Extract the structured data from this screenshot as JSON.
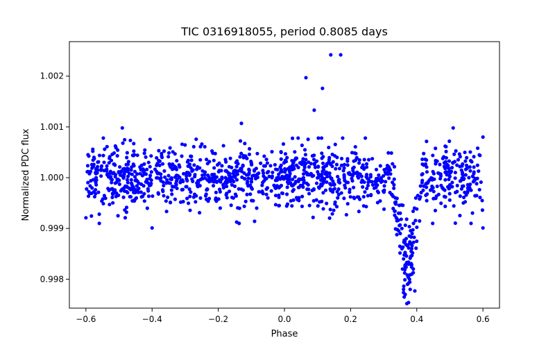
{
  "chart_data": {
    "type": "scatter",
    "title": "TIC 0316918055, period 0.8085 days",
    "xlabel": "Phase",
    "ylabel": "Normalized PDC flux",
    "xlim": [
      -0.65,
      0.65
    ],
    "ylim": [
      0.99743,
      1.00268
    ],
    "xticks": [
      -0.6,
      -0.4,
      -0.2,
      0.0,
      0.2,
      0.4,
      0.6
    ],
    "xtick_labels": [
      "−0.6",
      "−0.4",
      "−0.2",
      "0.0",
      "0.2",
      "0.4",
      "0.6"
    ],
    "yticks": [
      0.998,
      0.999,
      1.0,
      1.001,
      1.002
    ],
    "ytick_labels": [
      "0.998",
      "0.999",
      "1.000",
      "1.001",
      "1.002"
    ],
    "grid": false,
    "marker_color": "#0000ff",
    "series": [
      {
        "name": "phase-folded light curve",
        "summary": "Approx. 1300 points spread uniformly in phase from -0.6 to 0.6; out-of-eclipse flux ~1.0000 with scatter ~0.0003; transit dip centered near phase 0.37 reaching ~0.9975.",
        "n_points": 1300,
        "phase_range": [
          -0.6,
          0.6
        ],
        "baseline_flux": 1.0,
        "scatter_sigma": 0.0003,
        "transit": {
          "phase_center": 0.373,
          "half_width": 0.045,
          "depth": 0.0019
        },
        "notable_points": [
          {
            "x": -0.6,
            "y": 0.99921
          },
          {
            "x": -0.4,
            "y": 0.99901
          },
          {
            "x": -0.49,
            "y": 1.00098
          },
          {
            "x": -0.13,
            "y": 1.00107
          },
          {
            "x": 0.065,
            "y": 1.00197
          },
          {
            "x": 0.09,
            "y": 1.00133
          },
          {
            "x": 0.115,
            "y": 1.00176
          },
          {
            "x": 0.14,
            "y": 1.00242
          },
          {
            "x": 0.17,
            "y": 1.00242
          },
          {
            "x": 0.51,
            "y": 1.00098
          },
          {
            "x": 0.6,
            "y": 0.99901
          },
          {
            "x": 0.6,
            "y": 1.0008
          }
        ],
        "transit_points": [
          {
            "x": 0.35,
            "y": 0.9993
          },
          {
            "x": 0.355,
            "y": 0.9986
          },
          {
            "x": 0.357,
            "y": 0.9982
          },
          {
            "x": 0.36,
            "y": 0.9978
          },
          {
            "x": 0.362,
            "y": 0.99765
          },
          {
            "x": 0.365,
            "y": 0.9977
          },
          {
            "x": 0.37,
            "y": 0.99752
          },
          {
            "x": 0.372,
            "y": 0.9979
          },
          {
            "x": 0.375,
            "y": 0.99754
          },
          {
            "x": 0.378,
            "y": 0.998
          },
          {
            "x": 0.38,
            "y": 0.9983
          },
          {
            "x": 0.383,
            "y": 0.9987
          },
          {
            "x": 0.386,
            "y": 0.9989
          },
          {
            "x": 0.39,
            "y": 0.9991
          },
          {
            "x": 0.393,
            "y": 0.9994
          },
          {
            "x": 0.397,
            "y": 0.9996
          },
          {
            "x": 0.365,
            "y": 0.9985
          },
          {
            "x": 0.368,
            "y": 0.9988
          },
          {
            "x": 0.355,
            "y": 0.999
          },
          {
            "x": 0.36,
            "y": 0.9984
          },
          {
            "x": 0.38,
            "y": 0.9978
          },
          {
            "x": 0.385,
            "y": 0.9981
          },
          {
            "x": 0.35,
            "y": 0.9989
          },
          {
            "x": 0.345,
            "y": 0.9993
          }
        ]
      }
    ]
  }
}
